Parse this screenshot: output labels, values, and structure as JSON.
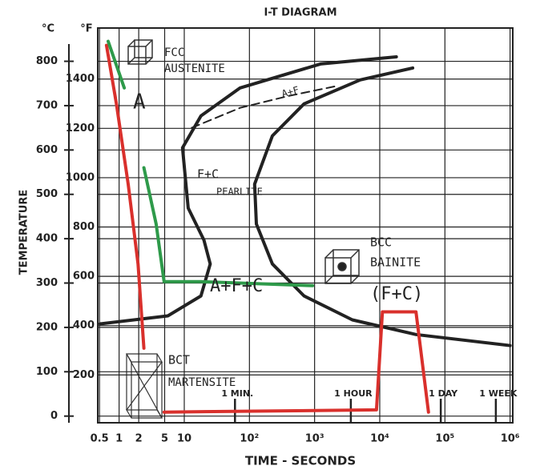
{
  "chart_data": {
    "type": "line",
    "title": "I-T DIAGRAM",
    "x_label": "TIME - SECONDS",
    "y_label": "TEMPERATURE",
    "y_unit": "°C",
    "y2_unit": "°F",
    "xscale": "log",
    "xlim": [
      0.47,
      1100000
    ],
    "xticks": [
      0.5,
      1,
      2,
      5,
      10,
      {
        "value": 100,
        "label": "10²"
      },
      {
        "value": 1000,
        "label": "10³"
      },
      {
        "value": 10000,
        "label": "10⁴"
      },
      {
        "value": 100000,
        "label": "10⁵"
      },
      {
        "value": 1000000,
        "label": "10⁶"
      }
    ],
    "ylim": [
      -15,
      875
    ],
    "yticks": [
      0,
      100,
      200,
      300,
      400,
      500,
      600,
      700,
      800
    ],
    "y2lim": [
      6,
      1607
    ],
    "y2ticks": [
      200,
      400,
      600,
      800,
      1000,
      1200,
      1400
    ],
    "grid": true,
    "xmarks": [
      {
        "value": 60,
        "label": "1 MIN."
      },
      {
        "value": 3600,
        "label": "1 HOUR"
      },
      {
        "value": 86400,
        "label": "1 DAY"
      },
      {
        "value": 604800,
        "label": "1 WEEK"
      }
    ],
    "series": [
      {
        "color": "#222222",
        "dash": false,
        "x": [
          18000,
          1230,
          72,
          18,
          9.4,
          11.5,
          20,
          25,
          18,
          5.6,
          0.51
        ],
        "values": [
          810,
          794,
          740,
          677,
          605,
          469,
          397,
          343,
          271,
          226,
          208
        ]
      },
      {
        "color": "#222222",
        "dash": false,
        "x": [
          32000,
          5000,
          690,
          225,
          120,
          128,
          225,
          690,
          3800,
          36000,
          1000000
        ],
        "values": [
          785,
          758,
          704,
          632,
          523,
          433,
          343,
          271,
          217,
          184,
          159
        ]
      },
      {
        "color": "#222222",
        "dash": true,
        "x": [
          13,
          72,
          400,
          2140
        ],
        "values": [
          650,
          695,
          722,
          744
        ]
      },
      {
        "color": "#d9302c",
        "dash": false,
        "x": [
          0.64,
          0.91,
          1.38,
          1.95,
          2.4
        ],
        "values": [
          836,
          704,
          523,
          343,
          153
        ]
      },
      {
        "color": "#d9302c",
        "dash": false,
        "x": [
          4.9,
          8900,
          11000,
          36000,
          56000
        ],
        "values": [
          9,
          14,
          235,
          235,
          9
        ]
      },
      {
        "color": "#2e9a4a",
        "dash": false,
        "x": [
          0.68,
          1.2,
          1.6,
          2.4,
          3.7,
          4.9,
          18,
          170,
          930
        ],
        "values": [
          845,
          740,
          null,
          560,
          433,
          303,
          303,
          298,
          294
        ]
      }
    ],
    "annotations": [
      "FCC",
      "AUSTENITE",
      "A",
      "A+F",
      "F+C",
      "PEARLITE",
      "A+F+C",
      "BCC",
      "BAINITE",
      "(F+C)",
      "BCT",
      "MARTENSITE"
    ]
  }
}
